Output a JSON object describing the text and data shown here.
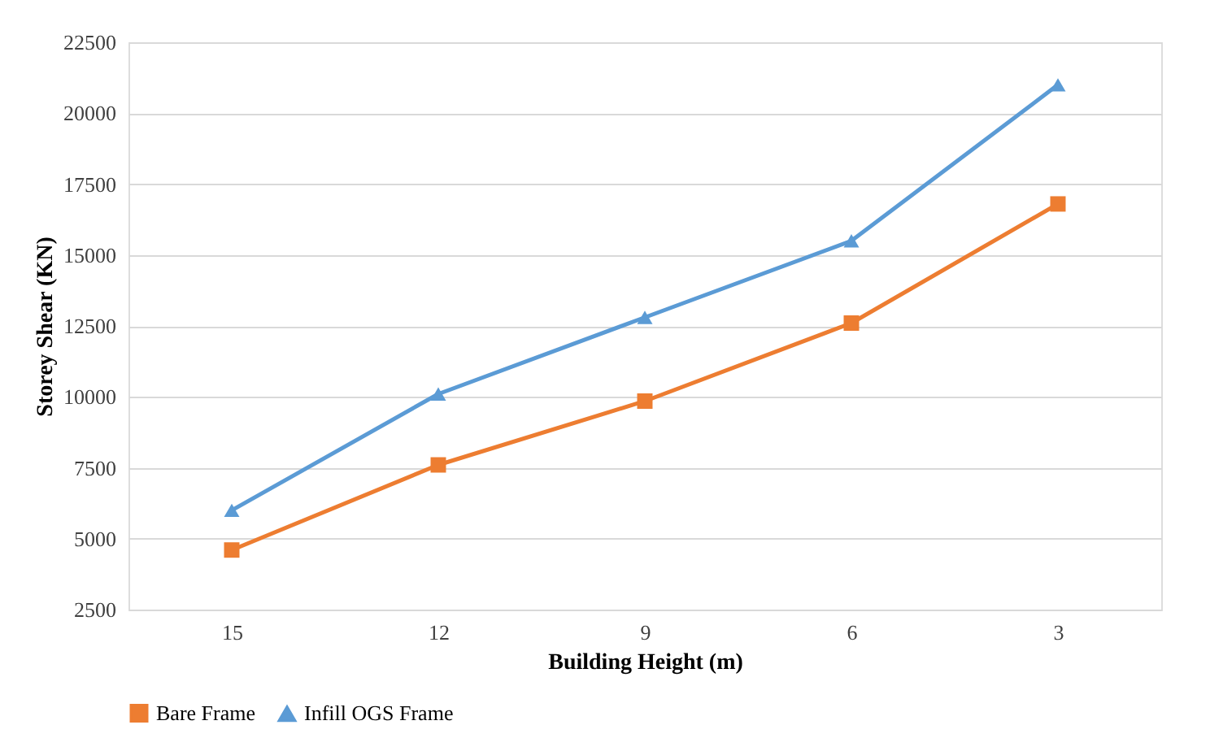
{
  "chart_data": {
    "type": "line",
    "xlabel": "Building Height (m)",
    "ylabel": "Storey Shear (KN)",
    "categories": [
      "15",
      "12",
      "9",
      "6",
      "3"
    ],
    "series": [
      {
        "name": "Bare Frame",
        "color": "#ed7d31",
        "marker": "square",
        "values": [
          4600,
          7600,
          9850,
          12600,
          16800
        ]
      },
      {
        "name": "Infill OGS Frame",
        "color": "#5b9bd5",
        "marker": "triangle",
        "values": [
          6000,
          10100,
          12800,
          15500,
          21000
        ]
      }
    ],
    "ylim": [
      2500,
      22500
    ],
    "yticks": [
      2500,
      5000,
      7500,
      10000,
      12500,
      15000,
      17500,
      20000,
      22500
    ],
    "grid": "y",
    "legend": "bottom"
  }
}
